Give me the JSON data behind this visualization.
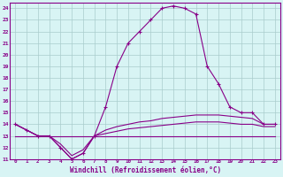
{
  "xlabel": "Windchill (Refroidissement éolien,°C)",
  "hours": [
    0,
    1,
    2,
    3,
    4,
    5,
    6,
    7,
    8,
    9,
    10,
    11,
    12,
    13,
    14,
    15,
    16,
    17,
    18,
    19,
    20,
    21,
    22,
    23
  ],
  "temp": [
    14,
    13.5,
    13,
    13,
    12,
    11,
    11.5,
    13,
    15.5,
    19,
    21,
    22,
    23,
    24,
    24.2,
    24,
    23.5,
    19,
    17.5,
    15.5,
    15,
    15,
    14,
    14
  ],
  "dew": [
    13,
    13,
    13,
    13,
    13,
    13,
    13,
    13,
    13,
    13,
    13,
    13,
    13,
    13,
    13,
    13,
    13,
    13,
    13,
    13,
    13,
    13,
    13,
    13
  ],
  "feels_like": [
    14,
    13.5,
    13,
    13,
    12,
    11,
    11.5,
    13,
    13.5,
    13.8,
    14.0,
    14.2,
    14.3,
    14.5,
    14.6,
    14.7,
    14.8,
    14.8,
    14.8,
    14.7,
    14.6,
    14.5,
    14.0,
    14.0
  ],
  "apparent": [
    14,
    13.5,
    13,
    13,
    12.3,
    11.3,
    11.8,
    13,
    13.2,
    13.4,
    13.6,
    13.7,
    13.8,
    13.9,
    14.0,
    14.1,
    14.2,
    14.2,
    14.2,
    14.1,
    14.0,
    14.0,
    13.8,
    13.8
  ],
  "line_color": "#880088",
  "bg_color": "#d8f4f4",
  "grid_color": "#aacccc",
  "ylim": [
    11,
    24.5
  ],
  "yticks": [
    11,
    12,
    13,
    14,
    15,
    16,
    17,
    18,
    19,
    20,
    21,
    22,
    23,
    24
  ],
  "xlim": [
    -0.5,
    23.5
  ]
}
